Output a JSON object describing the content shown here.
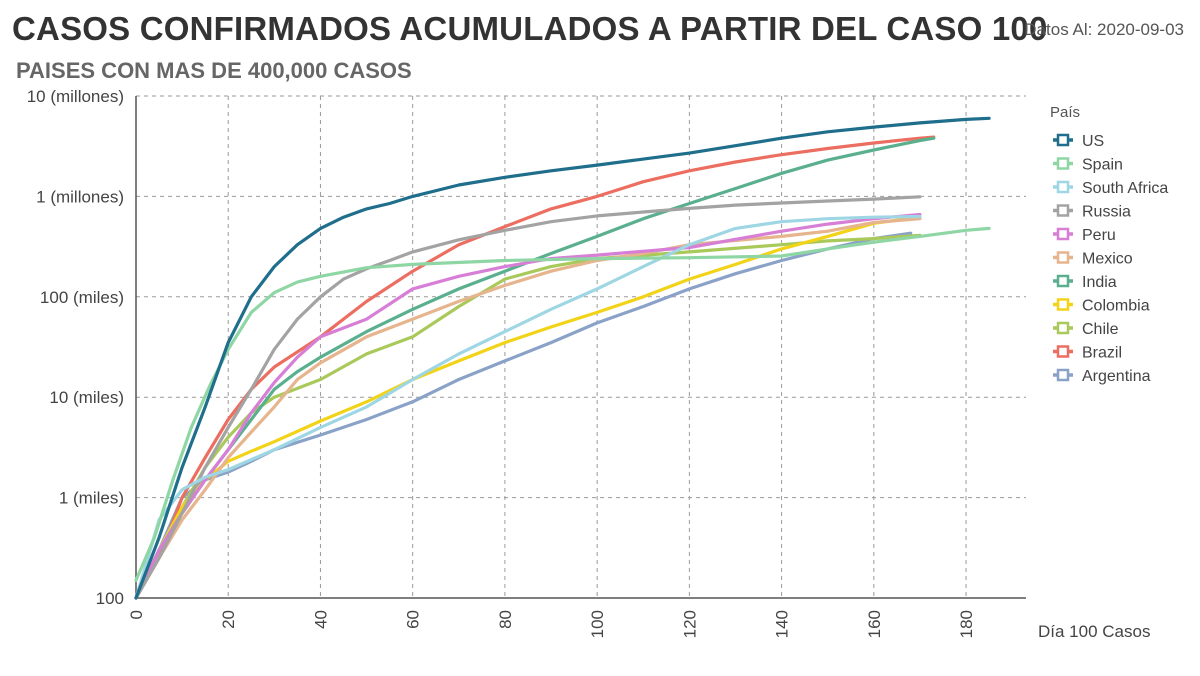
{
  "header": {
    "title": "CASOS CONFIRMADOS ACUMULADOS A PARTIR DEL CASO 100",
    "subtitle": "PAISES CON MAS DE 400,000 CASOS",
    "date": "Datos Al: 2020-09-03"
  },
  "chart_data": {
    "type": "line",
    "title": "CASOS CONFIRMADOS ACUMULADOS A PARTIR DEL CASO 100",
    "subtitle": "PAISES CON MAS DE 400,000 CASOS",
    "xlabel": "Día 100 Casos",
    "ylabel": "",
    "yscale": "log",
    "xlim": [
      0,
      193
    ],
    "ylim": [
      100,
      10000000
    ],
    "xticks": [
      0,
      20,
      40,
      60,
      80,
      100,
      120,
      140,
      160,
      180
    ],
    "yticks": [
      {
        "value": 100,
        "label": "100"
      },
      {
        "value": 1000,
        "label": "1 (miles)"
      },
      {
        "value": 10000,
        "label": "10 (miles)"
      },
      {
        "value": 100000,
        "label": "100 (miles)"
      },
      {
        "value": 1000000,
        "label": "1 (millones)"
      },
      {
        "value": 10000000,
        "label": "10 (millones)"
      }
    ],
    "grid": true,
    "legend_title": "País",
    "legend_position": "right",
    "series": [
      {
        "name": "US",
        "color": "#1f6e8c",
        "points": [
          [
            0,
            100
          ],
          [
            5,
            400
          ],
          [
            10,
            2000
          ],
          [
            15,
            8000
          ],
          [
            20,
            35000
          ],
          [
            25,
            100000
          ],
          [
            30,
            200000
          ],
          [
            35,
            330000
          ],
          [
            40,
            480000
          ],
          [
            45,
            620000
          ],
          [
            50,
            750000
          ],
          [
            55,
            850000
          ],
          [
            60,
            1000000
          ],
          [
            70,
            1300000
          ],
          [
            80,
            1550000
          ],
          [
            90,
            1800000
          ],
          [
            100,
            2050000
          ],
          [
            110,
            2350000
          ],
          [
            120,
            2700000
          ],
          [
            130,
            3200000
          ],
          [
            140,
            3800000
          ],
          [
            150,
            4400000
          ],
          [
            160,
            4900000
          ],
          [
            170,
            5400000
          ],
          [
            180,
            5850000
          ],
          [
            185,
            6000000
          ]
        ]
      },
      {
        "name": "Spain",
        "color": "#8fd6a5",
        "points": [
          [
            0,
            150
          ],
          [
            4,
            400
          ],
          [
            8,
            1500
          ],
          [
            12,
            5000
          ],
          [
            16,
            13000
          ],
          [
            20,
            30000
          ],
          [
            25,
            70000
          ],
          [
            30,
            110000
          ],
          [
            35,
            140000
          ],
          [
            40,
            160000
          ],
          [
            50,
            195000
          ],
          [
            60,
            210000
          ],
          [
            80,
            230000
          ],
          [
            100,
            240000
          ],
          [
            120,
            245000
          ],
          [
            140,
            255000
          ],
          [
            150,
            300000
          ],
          [
            160,
            350000
          ],
          [
            170,
            400000
          ],
          [
            180,
            460000
          ],
          [
            185,
            480000
          ]
        ]
      },
      {
        "name": "South Africa",
        "color": "#9ed6e4",
        "points": [
          [
            0,
            100
          ],
          [
            5,
            600
          ],
          [
            10,
            1200
          ],
          [
            15,
            1600
          ],
          [
            20,
            1900
          ],
          [
            30,
            3000
          ],
          [
            40,
            5000
          ],
          [
            50,
            8000
          ],
          [
            60,
            15000
          ],
          [
            70,
            27000
          ],
          [
            80,
            45000
          ],
          [
            90,
            75000
          ],
          [
            100,
            120000
          ],
          [
            110,
            200000
          ],
          [
            120,
            330000
          ],
          [
            130,
            480000
          ],
          [
            140,
            560000
          ],
          [
            150,
            600000
          ],
          [
            160,
            620000
          ],
          [
            170,
            630000
          ]
        ]
      },
      {
        "name": "Russia",
        "color": "#a3a3a3",
        "points": [
          [
            0,
            100
          ],
          [
            5,
            250
          ],
          [
            10,
            700
          ],
          [
            15,
            2000
          ],
          [
            20,
            5000
          ],
          [
            25,
            12000
          ],
          [
            30,
            30000
          ],
          [
            35,
            60000
          ],
          [
            40,
            100000
          ],
          [
            45,
            150000
          ],
          [
            50,
            190000
          ],
          [
            55,
            230000
          ],
          [
            60,
            280000
          ],
          [
            70,
            370000
          ],
          [
            80,
            460000
          ],
          [
            90,
            560000
          ],
          [
            100,
            640000
          ],
          [
            110,
            700000
          ],
          [
            120,
            760000
          ],
          [
            130,
            820000
          ],
          [
            140,
            860000
          ],
          [
            150,
            900000
          ],
          [
            160,
            940000
          ],
          [
            170,
            990000
          ]
        ]
      },
      {
        "name": "Peru",
        "color": "#d77fd6",
        "points": [
          [
            0,
            100
          ],
          [
            5,
            300
          ],
          [
            10,
            700
          ],
          [
            15,
            1500
          ],
          [
            20,
            3000
          ],
          [
            25,
            7000
          ],
          [
            30,
            14000
          ],
          [
            35,
            25000
          ],
          [
            40,
            40000
          ],
          [
            50,
            60000
          ],
          [
            60,
            120000
          ],
          [
            70,
            160000
          ],
          [
            80,
            200000
          ],
          [
            90,
            240000
          ],
          [
            100,
            260000
          ],
          [
            120,
            310000
          ],
          [
            140,
            450000
          ],
          [
            150,
            530000
          ],
          [
            160,
            600000
          ],
          [
            170,
            660000
          ]
        ]
      },
      {
        "name": "Mexico",
        "color": "#e6b48d",
        "points": [
          [
            0,
            100
          ],
          [
            5,
            250
          ],
          [
            10,
            600
          ],
          [
            15,
            1200
          ],
          [
            20,
            2500
          ],
          [
            25,
            4500
          ],
          [
            30,
            8000
          ],
          [
            35,
            15000
          ],
          [
            40,
            22000
          ],
          [
            50,
            40000
          ],
          [
            60,
            60000
          ],
          [
            70,
            90000
          ],
          [
            80,
            130000
          ],
          [
            90,
            180000
          ],
          [
            100,
            230000
          ],
          [
            110,
            270000
          ],
          [
            120,
            330000
          ],
          [
            140,
            400000
          ],
          [
            150,
            450000
          ],
          [
            160,
            550000
          ],
          [
            170,
            600000
          ]
        ]
      },
      {
        "name": "India",
        "color": "#5aaf8e",
        "points": [
          [
            0,
            100
          ],
          [
            5,
            300
          ],
          [
            10,
            700
          ],
          [
            15,
            1500
          ],
          [
            20,
            3000
          ],
          [
            25,
            6000
          ],
          [
            30,
            12000
          ],
          [
            35,
            18000
          ],
          [
            40,
            25000
          ],
          [
            50,
            45000
          ],
          [
            60,
            75000
          ],
          [
            70,
            120000
          ],
          [
            80,
            180000
          ],
          [
            90,
            270000
          ],
          [
            100,
            400000
          ],
          [
            110,
            600000
          ],
          [
            120,
            850000
          ],
          [
            130,
            1200000
          ],
          [
            140,
            1700000
          ],
          [
            150,
            2300000
          ],
          [
            160,
            2900000
          ],
          [
            170,
            3600000
          ],
          [
            173,
            3800000
          ]
        ]
      },
      {
        "name": "Colombia",
        "color": "#f2d318",
        "points": [
          [
            0,
            100
          ],
          [
            5,
            300
          ],
          [
            10,
            800
          ],
          [
            15,
            1500
          ],
          [
            20,
            2300
          ],
          [
            25,
            2900
          ],
          [
            30,
            3600
          ],
          [
            40,
            5800
          ],
          [
            50,
            9000
          ],
          [
            60,
            15000
          ],
          [
            70,
            23000
          ],
          [
            80,
            35000
          ],
          [
            90,
            50000
          ],
          [
            100,
            70000
          ],
          [
            110,
            100000
          ],
          [
            120,
            150000
          ],
          [
            130,
            210000
          ],
          [
            140,
            300000
          ],
          [
            150,
            400000
          ],
          [
            160,
            540000
          ],
          [
            170,
            620000
          ]
        ]
      },
      {
        "name": "Chile",
        "color": "#a9c95b",
        "points": [
          [
            0,
            100
          ],
          [
            5,
            300
          ],
          [
            10,
            800
          ],
          [
            15,
            2000
          ],
          [
            20,
            4000
          ],
          [
            25,
            7000
          ],
          [
            30,
            10000
          ],
          [
            40,
            15000
          ],
          [
            50,
            27000
          ],
          [
            60,
            40000
          ],
          [
            70,
            80000
          ],
          [
            80,
            150000
          ],
          [
            90,
            200000
          ],
          [
            100,
            240000
          ],
          [
            120,
            280000
          ],
          [
            140,
            330000
          ],
          [
            150,
            360000
          ],
          [
            160,
            380000
          ],
          [
            170,
            410000
          ]
        ]
      },
      {
        "name": "Brazil",
        "color": "#ec6e60",
        "points": [
          [
            0,
            100
          ],
          [
            5,
            250
          ],
          [
            10,
            1000
          ],
          [
            15,
            2500
          ],
          [
            20,
            6000
          ],
          [
            25,
            12000
          ],
          [
            30,
            20000
          ],
          [
            40,
            40000
          ],
          [
            50,
            90000
          ],
          [
            60,
            180000
          ],
          [
            70,
            330000
          ],
          [
            80,
            500000
          ],
          [
            90,
            750000
          ],
          [
            100,
            1000000
          ],
          [
            110,
            1400000
          ],
          [
            120,
            1800000
          ],
          [
            130,
            2200000
          ],
          [
            140,
            2600000
          ],
          [
            150,
            3000000
          ],
          [
            160,
            3400000
          ],
          [
            170,
            3800000
          ],
          [
            173,
            3900000
          ]
        ]
      },
      {
        "name": "Argentina",
        "color": "#8aa2c8",
        "points": [
          [
            0,
            100
          ],
          [
            5,
            300
          ],
          [
            10,
            1000
          ],
          [
            15,
            1500
          ],
          [
            20,
            1800
          ],
          [
            25,
            2300
          ],
          [
            30,
            3000
          ],
          [
            40,
            4200
          ],
          [
            50,
            6000
          ],
          [
            60,
            9000
          ],
          [
            70,
            15000
          ],
          [
            80,
            23000
          ],
          [
            90,
            35000
          ],
          [
            100,
            55000
          ],
          [
            110,
            80000
          ],
          [
            120,
            120000
          ],
          [
            130,
            170000
          ],
          [
            140,
            230000
          ],
          [
            150,
            300000
          ],
          [
            160,
            380000
          ],
          [
            168,
            430000
          ]
        ]
      }
    ]
  }
}
